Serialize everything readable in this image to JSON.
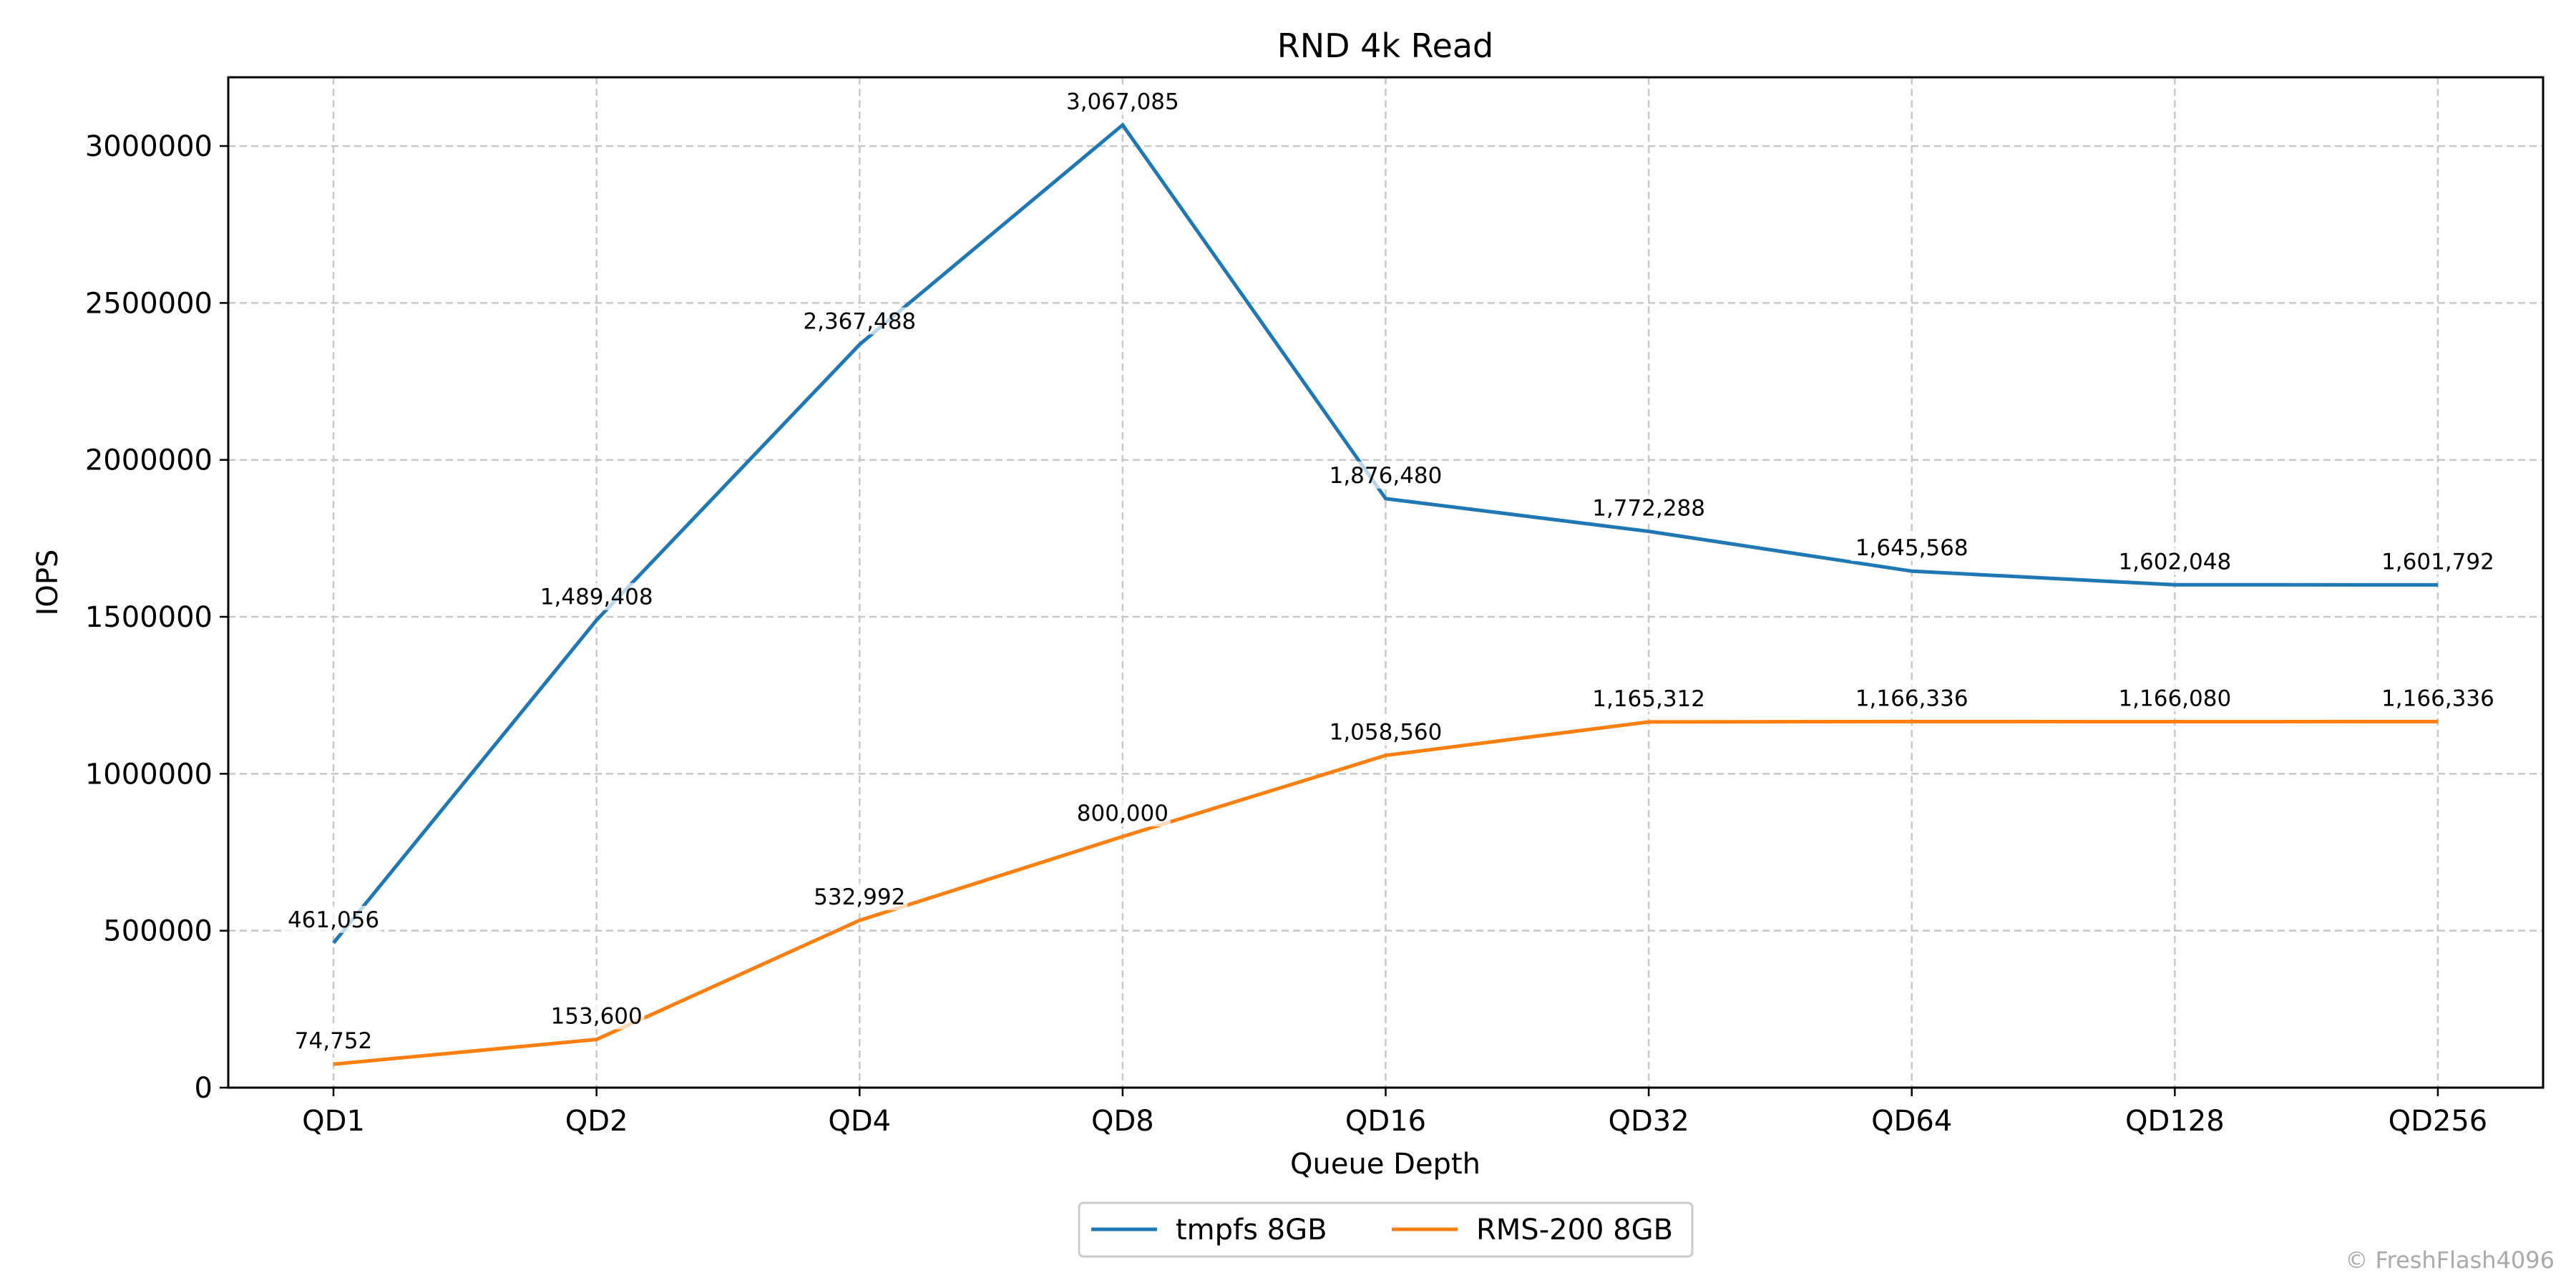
{
  "chart_data": {
    "type": "line",
    "title": "RND 4k Read",
    "xlabel": "Queue Depth",
    "ylabel": "IOPS",
    "categories": [
      "QD1",
      "QD2",
      "QD4",
      "QD8",
      "QD16",
      "QD32",
      "QD64",
      "QD128",
      "QD256"
    ],
    "ylim": [
      0,
      3219000
    ],
    "yticks": [
      0,
      500000,
      1000000,
      1500000,
      2000000,
      2500000,
      3000000
    ],
    "ytick_labels": [
      "0",
      "500000",
      "1000000",
      "1500000",
      "2000000",
      "2500000",
      "3000000"
    ],
    "grid": true,
    "legend_position": "bottom-center",
    "series": [
      {
        "name": "tmpfs 8GB",
        "color": "#1f77b4",
        "values": [
          461056,
          1489408,
          2367488,
          3067085,
          1876480,
          1772288,
          1645568,
          1602048,
          1601792
        ],
        "labels": [
          "461,056",
          "1,489,408",
          "2,367,488",
          "3,067,085",
          "1,876,480",
          "1,772,288",
          "1,645,568",
          "1,602,048",
          "1,601,792"
        ]
      },
      {
        "name": "RMS-200 8GB",
        "color": "#ff7f0e",
        "values": [
          74752,
          153600,
          532992,
          800000,
          1058560,
          1165312,
          1166336,
          1166080,
          1166336
        ],
        "labels": [
          "74,752",
          "153,600",
          "532,992",
          "800,000",
          "1,058,560",
          "1,165,312",
          "1,166,336",
          "1,166,080",
          "1,166,336"
        ]
      }
    ]
  },
  "watermark": "© FreshFlash4096"
}
